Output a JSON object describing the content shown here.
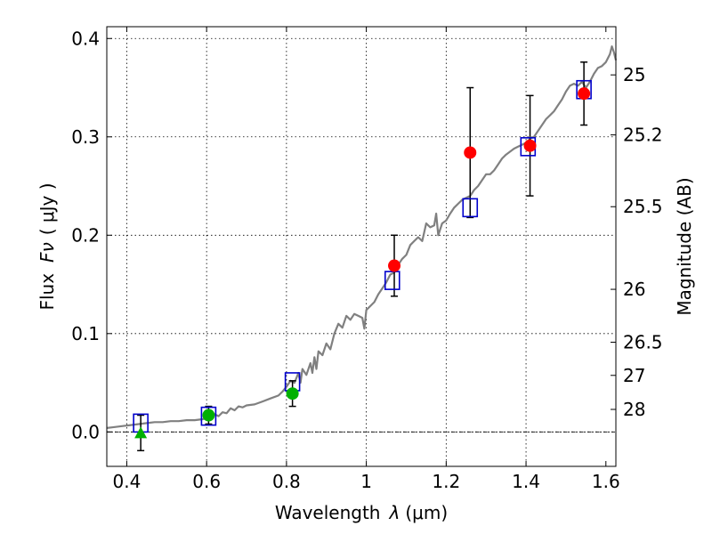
{
  "chart_data": {
    "type": "scatter",
    "xlabel_text": "Wavelength",
    "xlabel_symbol": "λ",
    "xlabel_unit": "(μm)",
    "ylabel_text": "Flux",
    "ylabel_symbol": "Fν",
    "ylabel_unit": "( μJy )",
    "y2label": "Magnitude (AB)",
    "xlim": [
      0.35,
      1.625
    ],
    "ylim": [
      -0.035,
      0.412
    ],
    "x_ticks": [
      0.4,
      0.6,
      0.8,
      1.0,
      1.2,
      1.4,
      1.6
    ],
    "x_tick_labels": [
      "0.4",
      "0.6",
      "0.8",
      "1",
      "1.2",
      "1.4",
      "1.6"
    ],
    "y_ticks": [
      0.0,
      0.1,
      0.2,
      0.3,
      0.4
    ],
    "y_tick_labels": [
      "0.0",
      "0.1",
      "0.2",
      "0.3",
      "0.4"
    ],
    "mag_ticks": [
      {
        "label": "25",
        "flux": 0.363
      },
      {
        "label": "25.2",
        "flux": 0.302
      },
      {
        "label": "25.5",
        "flux": 0.229
      },
      {
        "label": "26",
        "flux": 0.145
      },
      {
        "label": "26.5",
        "flux": 0.0912
      },
      {
        "label": "27",
        "flux": 0.0575
      },
      {
        "label": "28",
        "flux": 0.0229
      }
    ],
    "grid": true,
    "zero_line": true,
    "colors": {
      "sed": "#808080",
      "model": "#0000cc",
      "detection": "#ff0000",
      "optical": "#00b000",
      "upper_limit": "#00b000",
      "error_bar": "#000000"
    },
    "series": [
      {
        "marker": "line",
        "points": [
          [
            0.35,
            0.004
          ],
          [
            0.37,
            0.005
          ],
          [
            0.39,
            0.006
          ],
          [
            0.41,
            0.007
          ],
          [
            0.43,
            0.008
          ],
          [
            0.45,
            0.009
          ],
          [
            0.47,
            0.01
          ],
          [
            0.49,
            0.01
          ],
          [
            0.51,
            0.011
          ],
          [
            0.53,
            0.011
          ],
          [
            0.55,
            0.012
          ],
          [
            0.57,
            0.012
          ],
          [
            0.59,
            0.013
          ],
          [
            0.61,
            0.015
          ],
          [
            0.62,
            0.018
          ],
          [
            0.63,
            0.016
          ],
          [
            0.64,
            0.02
          ],
          [
            0.65,
            0.019
          ],
          [
            0.66,
            0.024
          ],
          [
            0.67,
            0.022
          ],
          [
            0.68,
            0.026
          ],
          [
            0.69,
            0.025
          ],
          [
            0.7,
            0.027
          ],
          [
            0.72,
            0.028
          ],
          [
            0.74,
            0.031
          ],
          [
            0.76,
            0.034
          ],
          [
            0.78,
            0.037
          ],
          [
            0.79,
            0.041
          ],
          [
            0.8,
            0.046
          ],
          [
            0.81,
            0.052
          ],
          [
            0.82,
            0.05
          ],
          [
            0.83,
            0.06
          ],
          [
            0.835,
            0.05
          ],
          [
            0.84,
            0.064
          ],
          [
            0.85,
            0.058
          ],
          [
            0.86,
            0.07
          ],
          [
            0.865,
            0.06
          ],
          [
            0.87,
            0.076
          ],
          [
            0.875,
            0.064
          ],
          [
            0.88,
            0.082
          ],
          [
            0.89,
            0.078
          ],
          [
            0.9,
            0.09
          ],
          [
            0.91,
            0.084
          ],
          [
            0.92,
            0.1
          ],
          [
            0.93,
            0.11
          ],
          [
            0.94,
            0.106
          ],
          [
            0.95,
            0.118
          ],
          [
            0.96,
            0.114
          ],
          [
            0.97,
            0.12
          ],
          [
            0.98,
            0.118
          ],
          [
            0.99,
            0.116
          ],
          [
            0.995,
            0.105
          ],
          [
            1.0,
            0.124
          ],
          [
            1.01,
            0.128
          ],
          [
            1.02,
            0.132
          ],
          [
            1.03,
            0.14
          ],
          [
            1.04,
            0.146
          ],
          [
            1.05,
            0.152
          ],
          [
            1.06,
            0.16
          ],
          [
            1.07,
            0.162
          ],
          [
            1.08,
            0.17
          ],
          [
            1.09,
            0.176
          ],
          [
            1.1,
            0.18
          ],
          [
            1.11,
            0.19
          ],
          [
            1.12,
            0.194
          ],
          [
            1.13,
            0.198
          ],
          [
            1.14,
            0.194
          ],
          [
            1.15,
            0.212
          ],
          [
            1.16,
            0.208
          ],
          [
            1.17,
            0.21
          ],
          [
            1.175,
            0.222
          ],
          [
            1.18,
            0.2
          ],
          [
            1.19,
            0.212
          ],
          [
            1.2,
            0.215
          ],
          [
            1.21,
            0.222
          ],
          [
            1.22,
            0.228
          ],
          [
            1.23,
            0.232
          ],
          [
            1.24,
            0.236
          ],
          [
            1.25,
            0.238
          ],
          [
            1.26,
            0.24
          ],
          [
            1.27,
            0.246
          ],
          [
            1.28,
            0.25
          ],
          [
            1.29,
            0.256
          ],
          [
            1.3,
            0.262
          ],
          [
            1.31,
            0.262
          ],
          [
            1.32,
            0.266
          ],
          [
            1.33,
            0.272
          ],
          [
            1.34,
            0.278
          ],
          [
            1.35,
            0.282
          ],
          [
            1.36,
            0.285
          ],
          [
            1.37,
            0.288
          ],
          [
            1.38,
            0.29
          ],
          [
            1.39,
            0.292
          ],
          [
            1.4,
            0.294
          ],
          [
            1.41,
            0.298
          ],
          [
            1.42,
            0.3
          ],
          [
            1.43,
            0.306
          ],
          [
            1.44,
            0.312
          ],
          [
            1.45,
            0.318
          ],
          [
            1.46,
            0.322
          ],
          [
            1.47,
            0.326
          ],
          [
            1.48,
            0.332
          ],
          [
            1.49,
            0.338
          ],
          [
            1.5,
            0.346
          ],
          [
            1.51,
            0.352
          ],
          [
            1.52,
            0.354
          ],
          [
            1.53,
            0.352
          ],
          [
            1.54,
            0.356
          ],
          [
            1.55,
            0.35
          ],
          [
            1.56,
            0.356
          ],
          [
            1.57,
            0.364
          ],
          [
            1.58,
            0.37
          ],
          [
            1.59,
            0.372
          ],
          [
            1.6,
            0.376
          ],
          [
            1.61,
            0.384
          ],
          [
            1.615,
            0.392
          ],
          [
            1.62,
            0.386
          ],
          [
            1.625,
            0.378
          ]
        ]
      },
      {
        "marker": "open-square",
        "points": [
          [
            0.435,
            0.009
          ],
          [
            0.605,
            0.016
          ],
          [
            0.815,
            0.051
          ],
          [
            1.065,
            0.154
          ],
          [
            1.26,
            0.228
          ],
          [
            1.405,
            0.29
          ],
          [
            1.545,
            0.348
          ]
        ]
      },
      {
        "marker": "filled-circle",
        "points": [
          [
            1.07,
            0.169,
            0.031
          ],
          [
            1.26,
            0.284,
            0.066
          ],
          [
            1.41,
            0.291,
            0.051
          ],
          [
            1.545,
            0.344,
            0.032
          ]
        ]
      },
      {
        "marker": "filled-circle",
        "points": [
          [
            0.605,
            0.017,
            0.009
          ],
          [
            0.815,
            0.039,
            0.013
          ]
        ]
      },
      {
        "marker": "triangle",
        "points": [
          [
            0.435,
            -0.001,
            0.018
          ]
        ]
      }
    ]
  }
}
